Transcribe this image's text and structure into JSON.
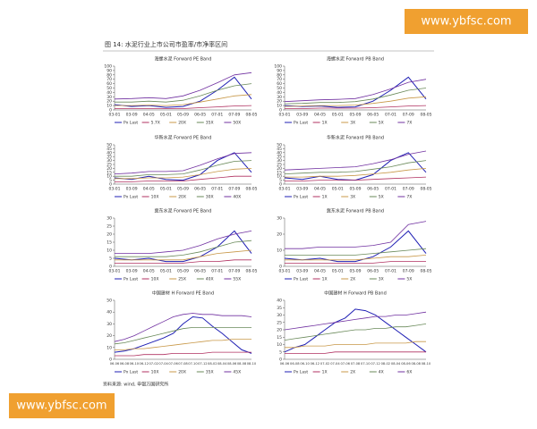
{
  "caption": "图 14: 水泥行业上市公司市盈率/市净率区间",
  "source": "资料来源: wind, 申银万国研究所",
  "watermarks": [
    "www.ybfsc.com",
    "www.ybfsc.com"
  ],
  "chart_data": [
    {
      "type": "line",
      "title": "海螺水泥 Forward PE Band",
      "categories": [
        "03-01",
        "03-09",
        "04-05",
        "05-01",
        "05-09",
        "06-05",
        "07-01",
        "07-09",
        "08-05"
      ],
      "ylim": [
        0,
        100
      ],
      "yticks": [
        0,
        10,
        20,
        30,
        40,
        50,
        60,
        70,
        80,
        90,
        100
      ],
      "series": [
        {
          "name": "Px Last",
          "color": "#1f1fb4",
          "values": [
            12,
            8,
            10,
            6,
            8,
            20,
            45,
            75,
            25
          ]
        },
        {
          "name": "5.7X",
          "color": "#b03060",
          "values": [
            3,
            3,
            3,
            3,
            3,
            5,
            7,
            9,
            10
          ]
        },
        {
          "name": "20X",
          "color": "#c89848",
          "values": [
            10,
            10,
            11,
            10,
            12,
            18,
            25,
            32,
            35
          ]
        },
        {
          "name": "35X",
          "color": "#6a8a5a",
          "values": [
            18,
            18,
            20,
            18,
            22,
            32,
            45,
            55,
            60
          ]
        },
        {
          "name": "50X",
          "color": "#7030a0",
          "values": [
            25,
            26,
            28,
            26,
            32,
            45,
            62,
            80,
            85
          ]
        }
      ]
    },
    {
      "type": "line",
      "title": "海螺水泥 Forward PB Band",
      "categories": [
        "03-01",
        "03-09",
        "04-05",
        "05-01",
        "05-09",
        "06-05",
        "07-01",
        "07-09",
        "08-05"
      ],
      "ylim": [
        0,
        100
      ],
      "yticks": [
        0,
        10,
        20,
        30,
        40,
        50,
        60,
        70,
        80,
        90,
        100
      ],
      "series": [
        {
          "name": "Px Last",
          "color": "#1f1fb4",
          "values": [
            10,
            8,
            9,
            6,
            7,
            20,
            45,
            75,
            25
          ]
        },
        {
          "name": "1X",
          "color": "#b03060",
          "values": [
            3,
            3,
            4,
            4,
            4,
            5,
            7,
            9,
            10
          ]
        },
        {
          "name": "3X",
          "color": "#c89848",
          "values": [
            8,
            9,
            10,
            10,
            11,
            15,
            20,
            27,
            30
          ]
        },
        {
          "name": "5X",
          "color": "#6a8a5a",
          "values": [
            14,
            15,
            17,
            17,
            19,
            25,
            34,
            45,
            50
          ]
        },
        {
          "name": "7X",
          "color": "#7030a0",
          "values": [
            19,
            21,
            23,
            24,
            26,
            35,
            48,
            63,
            70
          ]
        }
      ]
    },
    {
      "type": "line",
      "title": "华新水泥 Forward PE Band",
      "categories": [
        "03-01",
        "03-09",
        "04-05",
        "05-01",
        "05-09",
        "06-05",
        "07-01",
        "07-09",
        "08-05"
      ],
      "ylim": [
        0,
        50
      ],
      "yticks": [
        0,
        5,
        10,
        15,
        20,
        25,
        30,
        35,
        40,
        45,
        50
      ],
      "series": [
        {
          "name": "Px Last",
          "color": "#1f1fb4",
          "values": [
            8,
            6,
            10,
            6,
            5,
            12,
            30,
            40,
            15
          ]
        },
        {
          "name": "10X",
          "color": "#b03060",
          "values": [
            3,
            3,
            4,
            4,
            4,
            6,
            8,
            10,
            10
          ]
        },
        {
          "name": "20X",
          "color": "#c89848",
          "values": [
            7,
            7,
            8,
            8,
            9,
            12,
            16,
            19,
            20
          ]
        },
        {
          "name": "30X",
          "color": "#6a8a5a",
          "values": [
            10,
            10,
            12,
            12,
            13,
            18,
            24,
            29,
            30
          ]
        },
        {
          "name": "40X",
          "color": "#7030a0",
          "values": [
            13,
            14,
            16,
            16,
            17,
            24,
            32,
            39,
            40
          ]
        }
      ]
    },
    {
      "type": "line",
      "title": "华新水泥 Forward PB Band",
      "categories": [
        "03-01",
        "03-09",
        "04-05",
        "05-01",
        "05-09",
        "06-05",
        "07-01",
        "07-09",
        "08-05"
      ],
      "ylim": [
        0,
        50
      ],
      "yticks": [
        0,
        5,
        10,
        15,
        20,
        25,
        30,
        35,
        40,
        45,
        50
      ],
      "series": [
        {
          "name": "Px Last",
          "color": "#1f1fb4",
          "values": [
            8,
            6,
            10,
            6,
            5,
            12,
            30,
            40,
            15
          ]
        },
        {
          "name": "1X",
          "color": "#b03060",
          "values": [
            4,
            4,
            5,
            5,
            5,
            6,
            7,
            8,
            9
          ]
        },
        {
          "name": "3X",
          "color": "#c89848",
          "values": [
            9,
            9,
            10,
            10,
            11,
            13,
            15,
            18,
            20
          ]
        },
        {
          "name": "5X",
          "color": "#6a8a5a",
          "values": [
            13,
            14,
            15,
            15,
            16,
            19,
            22,
            27,
            30
          ]
        },
        {
          "name": "7X",
          "color": "#7030a0",
          "values": [
            18,
            19,
            20,
            21,
            22,
            26,
            31,
            38,
            42
          ]
        }
      ]
    },
    {
      "type": "line",
      "title": "冀东水泥 Forward PE Band",
      "categories": [
        "03-01",
        "03-09",
        "04-05",
        "05-01",
        "05-09",
        "06-05",
        "07-01",
        "07-09",
        "08-05"
      ],
      "ylim": [
        0,
        30
      ],
      "yticks": [
        0,
        5,
        10,
        15,
        20,
        25,
        30
      ],
      "series": [
        {
          "name": "Px Last",
          "color": "#1f1fb4",
          "values": [
            5,
            4,
            5,
            3,
            3,
            6,
            12,
            22,
            8
          ]
        },
        {
          "name": "10X",
          "color": "#b03060",
          "values": [
            2,
            2,
            2,
            2,
            2,
            3,
            3,
            4,
            4
          ]
        },
        {
          "name": "25X",
          "color": "#c89848",
          "values": [
            4,
            4,
            4,
            4,
            4,
            6,
            8,
            9,
            10
          ]
        },
        {
          "name": "40X",
          "color": "#6a8a5a",
          "values": [
            6,
            6,
            6,
            6,
            7,
            9,
            12,
            15,
            16
          ]
        },
        {
          "name": "55X",
          "color": "#7030a0",
          "values": [
            8,
            8,
            8,
            9,
            10,
            13,
            17,
            20,
            22
          ]
        }
      ]
    },
    {
      "type": "line",
      "title": "冀东水泥 Forward PB Band",
      "categories": [
        "03-01",
        "03-09",
        "04-05",
        "05-01",
        "05-09",
        "06-05",
        "07-01",
        "07-09",
        "08-05"
      ],
      "ylim": [
        0,
        30
      ],
      "yticks": [
        0,
        10,
        20,
        30
      ],
      "series": [
        {
          "name": "Px Last",
          "color": "#1f1fb4",
          "values": [
            5,
            4,
            5,
            3,
            3,
            6,
            12,
            22,
            8
          ]
        },
        {
          "name": "1X",
          "color": "#b03060",
          "values": [
            2,
            2,
            2,
            2,
            2,
            2,
            3,
            3,
            3
          ]
        },
        {
          "name": "2X",
          "color": "#c89848",
          "values": [
            4,
            4,
            4,
            4,
            4,
            5,
            6,
            6,
            7
          ]
        },
        {
          "name": "3X",
          "color": "#6a8a5a",
          "values": [
            7,
            7,
            7,
            7,
            7,
            8,
            9,
            10,
            11
          ]
        },
        {
          "name": "5X",
          "color": "#7030a0",
          "values": [
            11,
            11,
            12,
            12,
            12,
            13,
            15,
            26,
            28
          ]
        }
      ]
    },
    {
      "type": "line",
      "title": "中国建材 H Forward PE Band",
      "categories": [
        "06-06",
        "06-08",
        "06-10",
        "06-12",
        "07-02",
        "07-04",
        "07-06",
        "07-08",
        "07-10",
        "07-12",
        "08-02",
        "08-04",
        "08-06",
        "08-08",
        "08-10"
      ],
      "ylim": [
        0,
        50
      ],
      "yticks": [
        0,
        10,
        20,
        30,
        40,
        50
      ],
      "series": [
        {
          "name": "Px Last",
          "color": "#1f1fb4",
          "values": [
            6,
            7,
            9,
            12,
            15,
            18,
            22,
            30,
            36,
            35,
            28,
            22,
            15,
            8,
            5
          ]
        },
        {
          "name": "10X",
          "color": "#b03060",
          "values": [
            3,
            3,
            3,
            4,
            4,
            4,
            5,
            5,
            5,
            5,
            6,
            6,
            6,
            6,
            6
          ]
        },
        {
          "name": "20X",
          "color": "#c89848",
          "values": [
            8,
            8,
            9,
            9,
            10,
            11,
            12,
            13,
            14,
            15,
            16,
            16,
            17,
            17,
            17
          ]
        },
        {
          "name": "35X",
          "color": "#6a8a5a",
          "values": [
            13,
            14,
            16,
            18,
            20,
            22,
            24,
            26,
            27,
            27,
            27,
            27,
            27,
            27,
            27
          ]
        },
        {
          "name": "45X",
          "color": "#7030a0",
          "values": [
            15,
            17,
            20,
            24,
            28,
            32,
            36,
            38,
            39,
            38,
            38,
            37,
            37,
            37,
            36
          ]
        }
      ]
    },
    {
      "type": "line",
      "title": "中国建材 H Forward PB Band",
      "categories": [
        "06-06",
        "06-08",
        "06-10",
        "06-12",
        "07-02",
        "07-04",
        "07-06",
        "07-08",
        "07-10",
        "07-12",
        "08-02",
        "08-04",
        "08-06",
        "08-08",
        "08-10"
      ],
      "ylim": [
        0,
        40
      ],
      "yticks": [
        0,
        5,
        10,
        15,
        20,
        25,
        30,
        35,
        40
      ],
      "series": [
        {
          "name": "Px Last",
          "color": "#1f1fb4",
          "values": [
            5,
            8,
            10,
            15,
            20,
            25,
            28,
            34,
            33,
            30,
            25,
            20,
            15,
            10,
            5
          ]
        },
        {
          "name": "1X",
          "color": "#b03060",
          "values": [
            4,
            4,
            4,
            4,
            4,
            5,
            5,
            5,
            5,
            5,
            5,
            5,
            5,
            5,
            5
          ]
        },
        {
          "name": "2X",
          "color": "#c89848",
          "values": [
            8,
            8,
            9,
            9,
            9,
            10,
            10,
            10,
            10,
            11,
            11,
            11,
            11,
            12,
            12
          ]
        },
        {
          "name": "4X",
          "color": "#6a8a5a",
          "values": [
            13,
            14,
            15,
            16,
            17,
            18,
            19,
            20,
            20,
            21,
            21,
            22,
            22,
            23,
            24
          ]
        },
        {
          "name": "6X",
          "color": "#7030a0",
          "values": [
            20,
            21,
            22,
            23,
            24,
            25,
            26,
            27,
            28,
            29,
            29,
            30,
            30,
            31,
            32
          ]
        }
      ]
    }
  ]
}
